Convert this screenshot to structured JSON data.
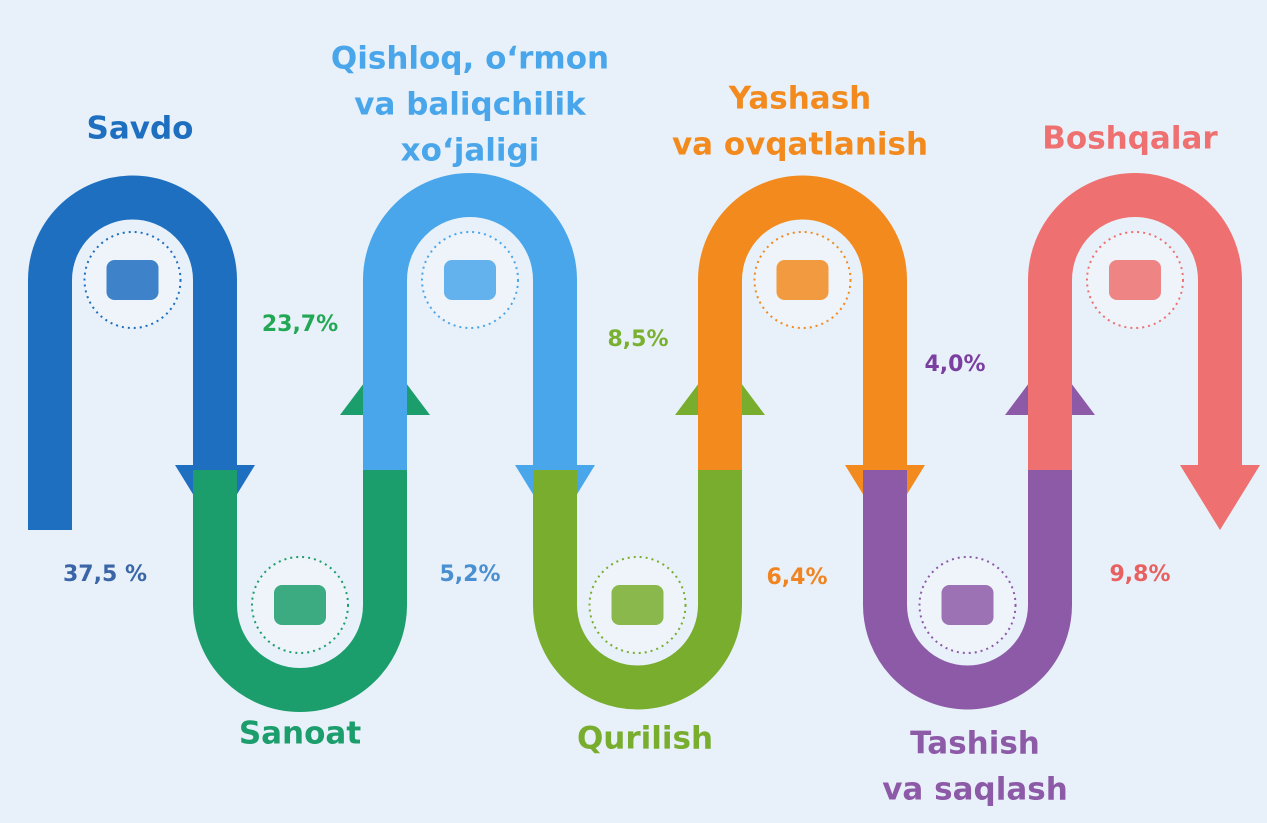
{
  "sectors": [
    {
      "label": [
        "Savdo"
      ],
      "share": "37,5 %"
    },
    {
      "label": [
        "Sanoat"
      ],
      "share": "23,7%"
    },
    {
      "label": [
        "Qishloq, o‘rmon",
        "va baliqchilik",
        "xo‘jaligi"
      ],
      "share": "5,2%"
    },
    {
      "label": [
        "Qurilish"
      ],
      "share": "8,5%"
    },
    {
      "label": [
        "Yashash",
        "va ovqatlanish"
      ],
      "share": "6,4%"
    },
    {
      "label": [
        "Tashish",
        "va saqlash"
      ],
      "share": "4,0%"
    },
    {
      "label": [
        "Boshqalar"
      ],
      "share": "9,8%"
    }
  ]
}
